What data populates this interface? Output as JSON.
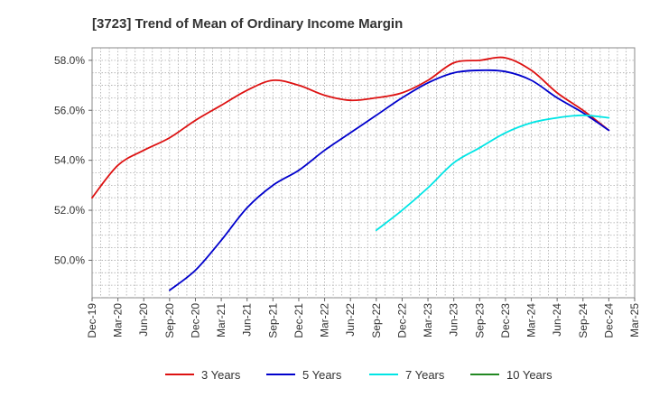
{
  "chart_data": {
    "type": "line",
    "title": "[3723]  Trend of Mean of Ordinary Income Margin",
    "xlabel": "",
    "ylabel": "",
    "y_unit": "%",
    "ylim": [
      48.5,
      58.5
    ],
    "y_ticks": [
      50.0,
      52.0,
      54.0,
      56.0,
      58.0
    ],
    "y_tick_labels": [
      "50.0%",
      "52.0%",
      "54.0%",
      "56.0%",
      "58.0%"
    ],
    "x_range": [
      "2019-12",
      "2025-03"
    ],
    "x_tick_labels": [
      "Dec-19",
      "Mar-20",
      "Jun-20",
      "Sep-20",
      "Dec-20",
      "Mar-21",
      "Jun-21",
      "Sep-21",
      "Dec-21",
      "Mar-22",
      "Jun-22",
      "Sep-22",
      "Dec-22",
      "Mar-23",
      "Jun-23",
      "Sep-23",
      "Dec-23",
      "Mar-24",
      "Jun-24",
      "Sep-24",
      "Dec-24",
      "Mar-25"
    ],
    "grid": true,
    "legend_position": "bottom",
    "series": [
      {
        "name": "3 Years",
        "color": "#dd1111",
        "x": [
          "2019-12",
          "2020-03",
          "2020-06",
          "2020-09",
          "2020-12",
          "2021-03",
          "2021-06",
          "2021-09",
          "2021-12",
          "2022-03",
          "2022-06",
          "2022-09",
          "2022-12",
          "2023-03",
          "2023-06",
          "2023-09",
          "2023-12",
          "2024-03",
          "2024-06",
          "2024-09",
          "2024-12"
        ],
        "values": [
          52.5,
          53.8,
          54.4,
          54.9,
          55.6,
          56.2,
          56.8,
          57.2,
          57.0,
          56.6,
          56.4,
          56.5,
          56.7,
          57.2,
          57.9,
          58.0,
          58.1,
          57.6,
          56.7,
          56.0,
          55.2
        ]
      },
      {
        "name": "5 Years",
        "color": "#0000cc",
        "x": [
          "2020-09",
          "2020-12",
          "2021-03",
          "2021-06",
          "2021-09",
          "2021-12",
          "2022-03",
          "2022-06",
          "2022-09",
          "2022-12",
          "2023-03",
          "2023-06",
          "2023-09",
          "2023-12",
          "2024-03",
          "2024-06",
          "2024-09",
          "2024-12"
        ],
        "values": [
          48.8,
          49.6,
          50.8,
          52.1,
          53.0,
          53.6,
          54.4,
          55.1,
          55.8,
          56.5,
          57.1,
          57.5,
          57.6,
          57.55,
          57.2,
          56.5,
          55.9,
          55.2
        ]
      },
      {
        "name": "7 Years",
        "color": "#00e5e5",
        "x": [
          "2022-09",
          "2022-12",
          "2023-03",
          "2023-06",
          "2023-09",
          "2023-12",
          "2024-03",
          "2024-06",
          "2024-09",
          "2024-12"
        ],
        "values": [
          51.2,
          52.0,
          52.9,
          53.9,
          54.5,
          55.1,
          55.5,
          55.7,
          55.8,
          55.7
        ]
      },
      {
        "name": "10 Years",
        "color": "#228822",
        "x": [],
        "values": []
      }
    ]
  }
}
